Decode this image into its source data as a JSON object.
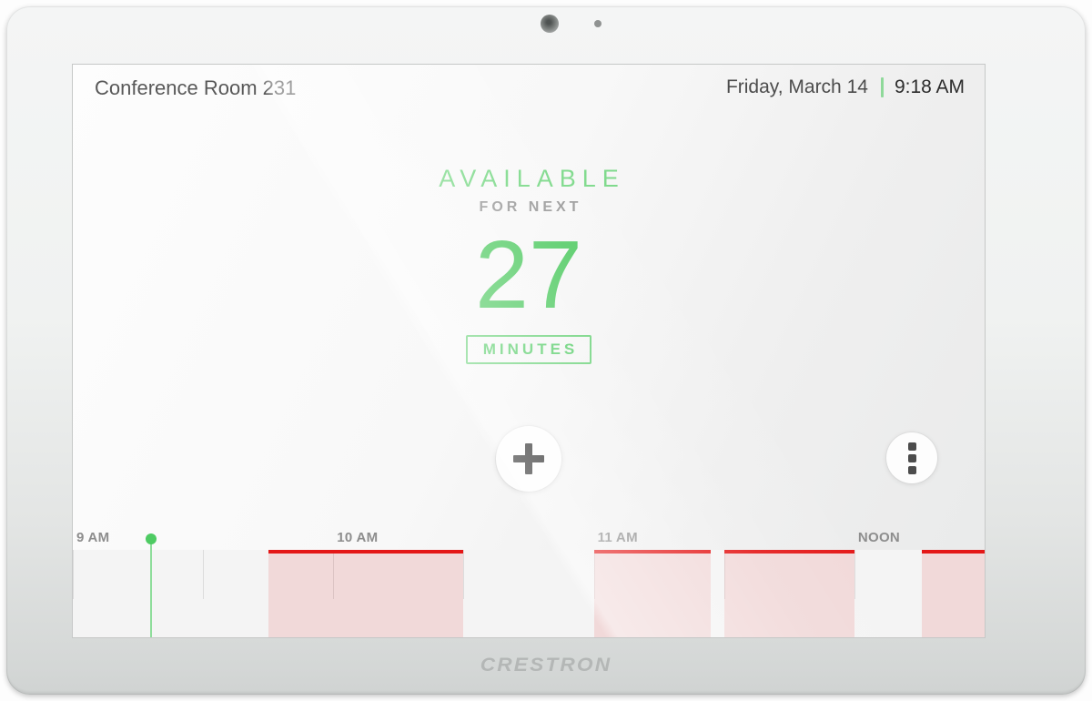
{
  "header": {
    "room_name": "Conference Room 231",
    "date": "Friday, March 14",
    "time": "9:18 AM"
  },
  "status": {
    "availability": "AVAILABLE",
    "qualifier": "FOR NEXT",
    "value": "27",
    "unit": "MINUTES"
  },
  "icons": {
    "add_meeting": "plus-icon",
    "more_options": "kebab-menu-icon",
    "camera": "camera-lens",
    "microphone": "mic-dot"
  },
  "branding": {
    "logo_text": "CRESTRON"
  },
  "colors": {
    "available_green": "#5ecb6e",
    "marker_green": "#4ecb63",
    "divider_green": "#8fd99a",
    "busy_border_red": "#e41717",
    "busy_fill_pink": "#f2d9d9",
    "hour_label_gray": "#8d8d8d"
  },
  "chart_data": {
    "type": "timeline",
    "title": "Room availability timeline",
    "axis_start_hour": 9.0,
    "axis_end_hour": 12.5,
    "hour_labels": [
      {
        "hour": 9,
        "label": "9 AM"
      },
      {
        "hour": 10,
        "label": "10 AM"
      },
      {
        "hour": 11,
        "label": "11 AM"
      },
      {
        "hour": 12,
        "label": "NOON"
      }
    ],
    "half_hour_ticks": [
      9.0,
      9.5,
      10.0,
      10.5,
      11.0,
      11.5,
      12.0
    ],
    "current_time_hour": 9.3,
    "busy_segments": [
      {
        "start_hour": 9.75,
        "end_hour": 10.5
      },
      {
        "start_hour": 11.0,
        "end_hour": 11.45
      },
      {
        "start_hour": 11.5,
        "end_hour": 12.0
      },
      {
        "start_hour": 12.26,
        "end_hour": 12.5
      }
    ]
  }
}
